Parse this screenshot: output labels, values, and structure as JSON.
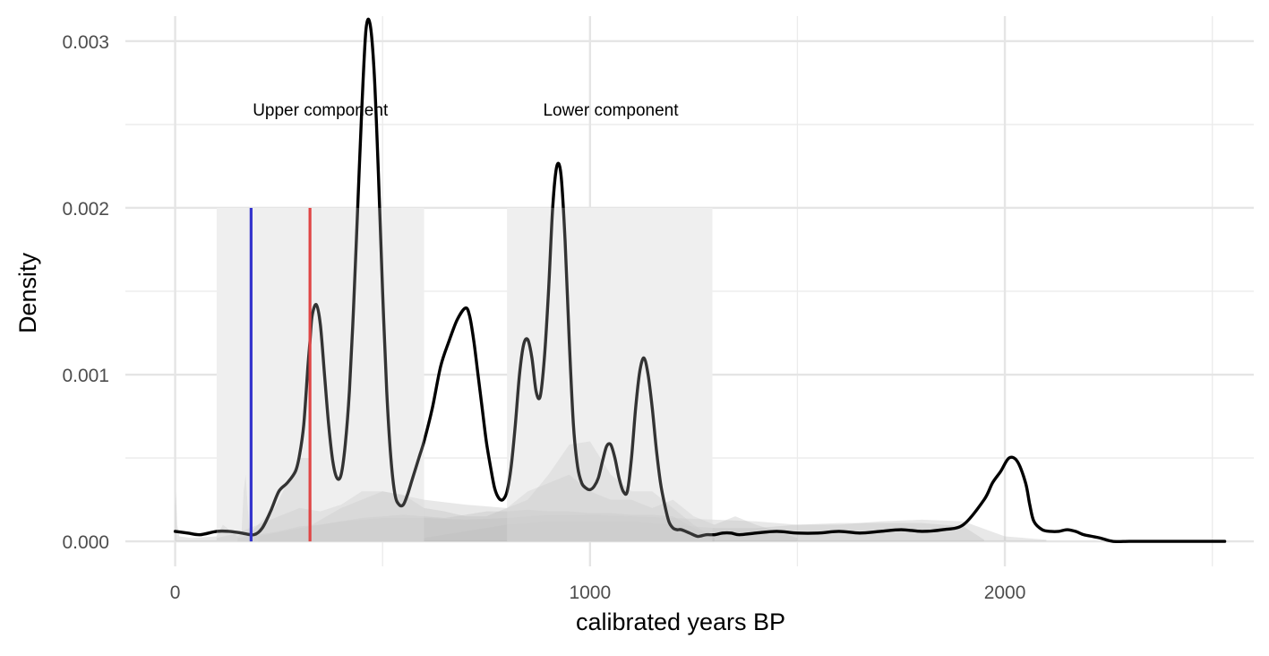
{
  "chart_data": {
    "type": "area",
    "xlabel": "calibrated years BP",
    "ylabel": "Density",
    "xlim": [
      -120,
      2600
    ],
    "ylim": [
      -0.00015,
      0.00315
    ],
    "x_ticks": [
      0,
      1000,
      2000
    ],
    "y_ticks": [
      0.0,
      0.001,
      0.002,
      0.003
    ],
    "y_tick_labels": [
      "0.000",
      "0.001",
      "0.002",
      "0.003"
    ],
    "grid": true,
    "legend": "none",
    "shaded_regions": [
      {
        "x0": 100,
        "x1": 600,
        "y0": 0,
        "y1": 0.002,
        "color": "#ebebeb"
      },
      {
        "x0": 800,
        "x1": 1295,
        "y0": 0,
        "y1": 0.002,
        "color": "#ebebeb"
      }
    ],
    "annotations": [
      {
        "text": "Upper component",
        "x": 350,
        "y": 0.00259
      },
      {
        "text": "Lower component",
        "x": 1050,
        "y": 0.00259
      }
    ],
    "vlines": [
      {
        "x": 183,
        "y0": 0,
        "y1": 0.002,
        "color": "#3333cc"
      },
      {
        "x": 325,
        "y0": 0,
        "y1": 0.002,
        "color": "#e04545"
      }
    ],
    "background_densities": [
      {
        "x": [
          0,
          2,
          5,
          10,
          40,
          100,
          115,
          150,
          160,
          165,
          170,
          175,
          180,
          200,
          240,
          260,
          300,
          325,
          330,
          400,
          500,
          600,
          700,
          800,
          850,
          900,
          950,
          1000,
          1050,
          1100,
          1150,
          1200,
          1250,
          1300
        ],
        "y": [
          0.0002,
          0.0003,
          0.0001,
          3e-05,
          2e-05,
          3e-05,
          0.0001,
          3e-05,
          5e-05,
          0.0003,
          0.0004,
          0.0002,
          5e-05,
          0.0001,
          0.0002,
          0.0003,
          0.0005,
          0.0005,
          0.0001,
          0.0002,
          0.0003,
          0.00025,
          0.00022,
          0.0002,
          0.00025,
          0.0004,
          0.00058,
          0.0006,
          0.0004,
          0.0003,
          0.0003,
          0.0002,
          0.0001,
          2e-05
        ]
      },
      {
        "x": [
          100,
          150,
          200,
          250,
          300,
          350,
          400,
          450,
          500,
          550,
          600,
          650,
          700,
          750,
          800,
          850,
          900,
          950,
          1000,
          1050,
          1100,
          1150,
          1200,
          1250,
          1300,
          1350,
          1400,
          1450,
          1500
        ],
        "y": [
          2e-05,
          5e-05,
          0.0001,
          0.00015,
          0.0002,
          0.00018,
          0.00022,
          0.0003,
          0.0003,
          0.00028,
          0.0002,
          0.00018,
          0.00015,
          0.00015,
          0.0002,
          0.0003,
          0.00035,
          0.0004,
          0.0003,
          0.00025,
          0.00025,
          0.0002,
          0.00025,
          0.00015,
          0.0001,
          0.00015,
          0.0001,
          6e-05,
          2e-05
        ]
      },
      {
        "x": [
          200,
          300,
          400,
          500,
          600,
          700,
          800,
          900,
          1000,
          1100,
          1200,
          1300,
          1400,
          1500,
          1600,
          1700,
          1800,
          1900,
          2000,
          2100
        ],
        "y": [
          3e-05,
          8e-05,
          0.00012,
          0.00014,
          0.00014,
          0.00013,
          0.00014,
          0.00016,
          0.00016,
          0.00015,
          0.00014,
          0.00013,
          0.00012,
          0.0001,
          0.0001,
          0.00012,
          0.00013,
          0.00012,
          3e-05,
          1e-05
        ]
      },
      {
        "x": [
          600,
          700,
          800,
          900,
          1000,
          1100,
          1200,
          1300,
          1400,
          1500,
          1600,
          1700,
          1800,
          1900,
          1950
        ],
        "y": [
          2e-05,
          6e-05,
          0.0001,
          0.00012,
          0.00012,
          0.00012,
          0.0001,
          8e-05,
          8e-05,
          0.0001,
          0.00011,
          0.00011,
          0.00011,
          9e-05,
          1e-05
        ]
      },
      {
        "x": [
          150,
          200,
          250,
          300,
          350,
          400,
          450,
          500,
          550,
          600,
          650,
          700,
          750,
          800,
          850,
          900,
          950,
          1000,
          1050,
          1100,
          1150,
          1200,
          1250,
          1300
        ],
        "y": [
          2e-05,
          4e-05,
          6e-05,
          9e-05,
          0.0001,
          0.00012,
          0.00014,
          0.00015,
          0.00016,
          0.00015,
          0.00014,
          0.00016,
          0.00018,
          0.00018,
          0.00019,
          0.00018,
          0.00018,
          0.00017,
          0.00017,
          0.00016,
          0.00016,
          0.00015,
          8e-05,
          2e-05
        ]
      }
    ],
    "summed_density": {
      "x": [
        0,
        30,
        60,
        100,
        130,
        160,
        190,
        210,
        230,
        250,
        270,
        290,
        300,
        310,
        320,
        325,
        330,
        340,
        350,
        360,
        370,
        380,
        390,
        400,
        410,
        420,
        430,
        440,
        450,
        460,
        470,
        480,
        490,
        500,
        510,
        520,
        530,
        540,
        550,
        560,
        570,
        580,
        590,
        600,
        620,
        640,
        660,
        680,
        700,
        710,
        720,
        730,
        740,
        750,
        760,
        770,
        780,
        790,
        800,
        810,
        820,
        830,
        840,
        850,
        860,
        870,
        880,
        890,
        900,
        910,
        920,
        930,
        940,
        950,
        960,
        970,
        980,
        990,
        1000,
        1010,
        1020,
        1030,
        1040,
        1050,
        1060,
        1070,
        1080,
        1090,
        1100,
        1110,
        1120,
        1130,
        1140,
        1150,
        1160,
        1170,
        1180,
        1190,
        1200,
        1210,
        1220,
        1240,
        1260,
        1280,
        1300,
        1320,
        1340,
        1360,
        1400,
        1450,
        1500,
        1550,
        1600,
        1650,
        1700,
        1750,
        1800,
        1850,
        1900,
        1950,
        1970,
        1990,
        2010,
        2030,
        2050,
        2060,
        2070,
        2090,
        2110,
        2130,
        2150,
        2170,
        2190,
        2210,
        2230,
        2260,
        2300,
        2350,
        2400,
        2450,
        2500,
        2530
      ],
      "y": [
        6e-05,
        5e-05,
        4e-05,
        6e-05,
        6e-05,
        5e-05,
        4e-05,
        8e-05,
        0.00018,
        0.0003,
        0.00035,
        0.00042,
        0.00052,
        0.0007,
        0.00105,
        0.0012,
        0.00135,
        0.00142,
        0.0013,
        0.001,
        0.0007,
        0.00048,
        0.00038,
        0.0004,
        0.00058,
        0.0009,
        0.0014,
        0.002,
        0.0026,
        0.00307,
        0.0031,
        0.0028,
        0.0022,
        0.0015,
        0.0009,
        0.0005,
        0.00028,
        0.00022,
        0.00022,
        0.00028,
        0.00036,
        0.00044,
        0.00052,
        0.0006,
        0.0008,
        0.00105,
        0.0012,
        0.00133,
        0.0014,
        0.00135,
        0.0012,
        0.001,
        0.0008,
        0.0006,
        0.00045,
        0.00032,
        0.00026,
        0.00025,
        0.0003,
        0.00045,
        0.0007,
        0.001,
        0.00118,
        0.00121,
        0.0011,
        0.0009,
        0.00087,
        0.0011,
        0.0015,
        0.002,
        0.00225,
        0.0022,
        0.0018,
        0.0012,
        0.0007,
        0.00045,
        0.00035,
        0.00032,
        0.00031,
        0.00033,
        0.00038,
        0.00048,
        0.00057,
        0.00058,
        0.0005,
        0.00038,
        0.0003,
        0.0003,
        0.0005,
        0.0008,
        0.00102,
        0.0011,
        0.001,
        0.0008,
        0.00055,
        0.00035,
        0.00022,
        0.00012,
        8e-05,
        7e-05,
        7e-05,
        5e-05,
        3e-05,
        4e-05,
        4e-05,
        5e-05,
        5e-05,
        4e-05,
        5e-05,
        6e-05,
        5e-05,
        5e-05,
        6e-05,
        5e-05,
        6e-05,
        7e-05,
        6e-05,
        7e-05,
        0.0001,
        0.00025,
        0.00035,
        0.00042,
        0.0005,
        0.00048,
        0.00035,
        0.00022,
        0.00012,
        7e-05,
        6e-05,
        6e-05,
        7e-05,
        6e-05,
        4e-05,
        3e-05,
        2e-05,
        0.0,
        0.0,
        0.0,
        0.0,
        0.0,
        0.0,
        0.0
      ]
    }
  }
}
